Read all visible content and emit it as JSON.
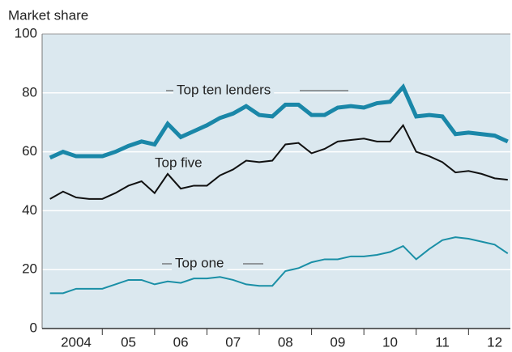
{
  "chart_data": {
    "type": "line",
    "y_axis_label": "Market share",
    "x": [
      2004,
      2004.25,
      2004.5,
      2004.75,
      2005,
      2005.25,
      2005.5,
      2005.75,
      2006,
      2006.25,
      2006.5,
      2006.75,
      2007,
      2007.25,
      2007.5,
      2007.75,
      2008,
      2008.25,
      2008.5,
      2008.75,
      2009,
      2009.25,
      2009.5,
      2009.75,
      2010,
      2010.25,
      2010.5,
      2010.75,
      2011,
      2011.25,
      2011.5,
      2011.75,
      2012,
      2012.25,
      2012.5,
      2012.75
    ],
    "series": [
      {
        "name": "Top ten lenders",
        "color": "#1a87a8",
        "width": 5,
        "values": [
          58,
          60,
          58.5,
          58.5,
          58.5,
          60,
          62,
          63.5,
          62.5,
          69.5,
          65,
          67,
          69,
          71.5,
          73,
          75.5,
          72.5,
          72,
          76,
          76,
          72.5,
          72.5,
          75,
          75.5,
          75,
          76.5,
          77,
          82,
          72,
          72.5,
          72,
          66,
          66.5,
          66,
          65.5,
          63.5
        ]
      },
      {
        "name": "Top five",
        "color": "#111111",
        "width": 2,
        "values": [
          44,
          46.5,
          44.5,
          44,
          44,
          46,
          48.5,
          50,
          46,
          52.5,
          47.5,
          48.5,
          48.5,
          52,
          54,
          57,
          56.5,
          57,
          62.5,
          63,
          59.5,
          61,
          63.5,
          64,
          64.5,
          63.5,
          63.5,
          69,
          60,
          58.5,
          56.5,
          53,
          53.5,
          52.5,
          51,
          50.5
        ]
      },
      {
        "name": "Top one",
        "color": "#1a8fa6",
        "width": 2,
        "values": [
          12,
          12,
          13.5,
          13.5,
          13.5,
          15,
          16.5,
          16.5,
          15,
          16,
          15.5,
          17,
          17,
          17.5,
          16.5,
          15,
          14.5,
          14.5,
          19.5,
          20.5,
          22.5,
          23.5,
          23.5,
          24.5,
          24.5,
          25,
          26,
          28,
          23.5,
          27,
          30,
          31,
          30.5,
          29.5,
          28.5,
          25.5
        ]
      }
    ],
    "xlim": [
      2003.85,
      2012.8
    ],
    "xticks": [
      {
        "value": 2004.5,
        "label": "2004"
      },
      {
        "value": 2005.5,
        "label": "05"
      },
      {
        "value": 2006.5,
        "label": "06"
      },
      {
        "value": 2007.5,
        "label": "07"
      },
      {
        "value": 2008.5,
        "label": "08"
      },
      {
        "value": 2009.5,
        "label": "09"
      },
      {
        "value": 2010.5,
        "label": "10"
      },
      {
        "value": 2011.5,
        "label": "11"
      },
      {
        "value": 2012.5,
        "label": "12"
      }
    ],
    "xtick_marks": [
      2005,
      2006,
      2007,
      2008,
      2009,
      2010,
      2011,
      2012
    ],
    "ylim": [
      0,
      100
    ],
    "yticks": [
      0,
      20,
      40,
      60,
      80,
      100
    ],
    "grid": true
  }
}
